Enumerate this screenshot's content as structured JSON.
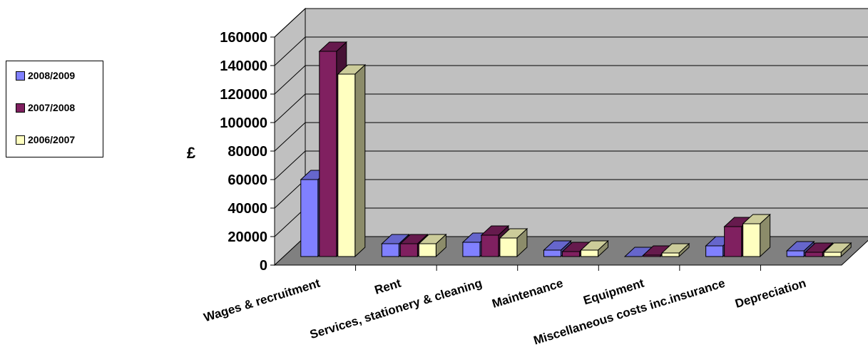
{
  "chart_data": {
    "type": "bar",
    "style": "3d-clustered",
    "ylabel": "£",
    "ylim": [
      0,
      160000
    ],
    "yticks": [
      0,
      20000,
      40000,
      60000,
      80000,
      100000,
      120000,
      140000,
      160000
    ],
    "grid": true,
    "legend_position": "left",
    "categories": [
      "Wages & recruitment",
      "Rent",
      "Services, stationery & cleaning",
      "Maintenance",
      "Equipment",
      "Miscellaneous costs inc.insurance",
      "Depreciation"
    ],
    "series": [
      {
        "name": "2008/2009",
        "color": "#8080FF",
        "values": [
          54000,
          9000,
          10000,
          4500,
          0,
          7500,
          4000
        ]
      },
      {
        "name": "2007/2008",
        "color": "#802060",
        "values": [
          144000,
          9000,
          15000,
          3500,
          1000,
          21000,
          3000
        ]
      },
      {
        "name": "2006/2007",
        "color": "#FFFFC0",
        "values": [
          128000,
          9000,
          13000,
          4500,
          2500,
          23000,
          3000
        ]
      }
    ]
  },
  "colors": {
    "wall": "#C0C0C0",
    "floor": "#808080",
    "grid": "#000000"
  }
}
